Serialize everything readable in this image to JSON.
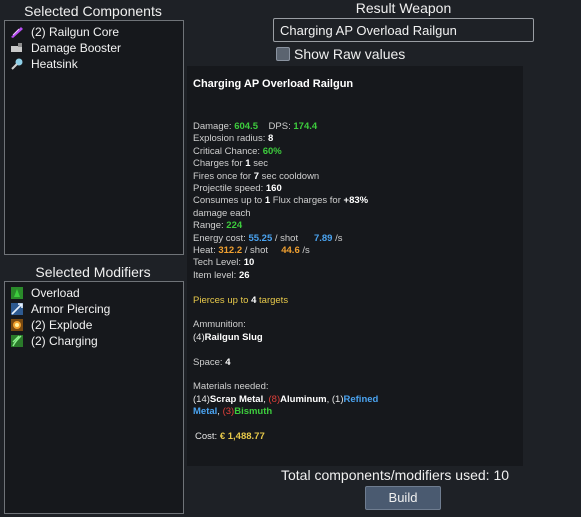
{
  "components": {
    "title": "Selected Components",
    "items": [
      {
        "label": "(2) Railgun Core",
        "icon": "railgun-core-icon",
        "color": "#b64cf2"
      },
      {
        "label": "Damage Booster",
        "icon": "damage-booster-icon",
        "color": "#c9c9c9"
      },
      {
        "label": "Heatsink",
        "icon": "heatsink-icon",
        "color": "#8fd0e8"
      }
    ]
  },
  "modifiers": {
    "title": "Selected Modifiers",
    "items": [
      {
        "label": "Overload",
        "icon": "overload-icon",
        "color": "#3dcc3d"
      },
      {
        "label": "Armor Piercing",
        "icon": "armor-piercing-icon",
        "color": "#5aa0f0"
      },
      {
        "label": "(2) Explode",
        "icon": "explode-icon",
        "color": "#f0a030"
      },
      {
        "label": "(2) Charging",
        "icon": "charging-icon",
        "color": "#3dcc3d"
      }
    ]
  },
  "result": {
    "title": "Result Weapon",
    "name_value": "Charging AP Overload Railgun",
    "show_raw_label": "Show Raw values",
    "show_raw_checked": false,
    "dash": "-"
  },
  "stats": {
    "heading": "Charging AP Overload Railgun",
    "damage_label": "Damage:",
    "damage_value": "604.5",
    "dps_label": "DPS:",
    "dps_value": "174.4",
    "explosion_label": "Explosion radius:",
    "explosion_value": "8",
    "crit_label": "Critical Chance:",
    "crit_value": "60%",
    "charges_pre": "Charges for",
    "charges_value": "1",
    "charges_post": "sec",
    "fires_pre": "Fires once for",
    "fires_value": "7",
    "fires_post": "sec cooldown",
    "projectile_label": "Projectile speed:",
    "projectile_value": "160",
    "consumes_pre": "Consumes up to",
    "consumes_value": "1",
    "consumes_mid": "Flux charges for",
    "consumes_bonus": "+83%",
    "consumes_post": "damage each",
    "range_label": "Range:",
    "range_value": "224",
    "energy_label": "Energy cost:",
    "energy_shot": "55.25",
    "per_shot": "/ shot",
    "energy_rate": "7.89",
    "per_sec": "/s",
    "heat_label": "Heat:",
    "heat_shot": "312.2",
    "heat_rate": "44.6",
    "tech_label": "Tech Level:",
    "tech_value": "10",
    "item_label": "Item level:",
    "item_value": "26",
    "pierce_pre": "Pierces up to",
    "pierce_value": "4",
    "pierce_post": "targets",
    "ammo_label": "Ammunition:",
    "ammo_count": "(4)",
    "ammo_name": "Railgun Slug",
    "space_label": "Space:",
    "space_value": "4",
    "materials_label": "Materials needed:",
    "mat1_count": "(14)",
    "mat1_name": "Scrap Metal",
    "mat2_count": "(8)",
    "mat2_name": "Aluminum",
    "mat3_count": "(1)",
    "mat3_name_a": "Refined",
    "mat3_name_b": "Metal",
    "mat4_count": "(3)",
    "mat4_name": "Bismuth",
    "cost_label": "Cost:",
    "cost_value": "€ 1,488.77"
  },
  "footer": {
    "total_label": "Total components/modifiers used: 10",
    "build_label": "Build"
  },
  "colors": {
    "green": "#3dcc3d",
    "blue": "#4aa3f0",
    "orange": "#f0a030",
    "red": "#e0403a",
    "yellow": "#e6c84a",
    "panel_bg": "#16181c",
    "page_bg": "#1e2126"
  }
}
